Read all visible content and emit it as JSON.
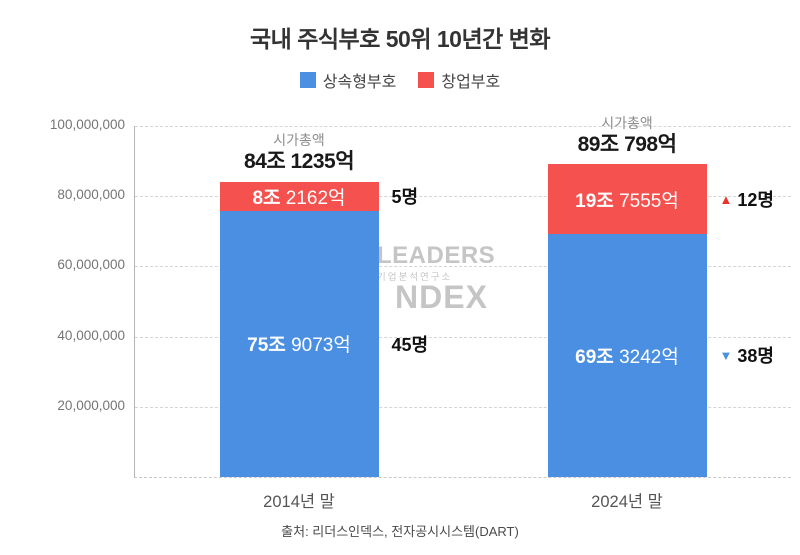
{
  "chart_data": {
    "type": "bar",
    "stacked": true,
    "title": "국내 주식부호 50위 10년간 변화",
    "source": "출처: 리더스인덱스, 전자공시시스템(DART)",
    "categories": [
      "2014년 말",
      "2024년 말"
    ],
    "ylim": [
      0,
      100000000
    ],
    "yticks": [
      20000000,
      40000000,
      60000000,
      80000000,
      100000000
    ],
    "ytick_labels": [
      "20,000,000",
      "40,000,000",
      "60,000,000",
      "80,000,000",
      "100,000,000"
    ],
    "grid": "horizontal-dashed",
    "legend_position": "top",
    "series": [
      {
        "name": "상속형부호",
        "color": "#4b8fe2",
        "values": [
          75907300,
          69324200
        ],
        "bar_labels": [
          "75조 9073억",
          "69조 3242억"
        ],
        "count_annotations": [
          {
            "marker": "",
            "marker_color": "",
            "text": "45명"
          },
          {
            "marker": "▼",
            "marker_color": "#4a90e2",
            "text": "38명"
          }
        ]
      },
      {
        "name": "창업부호",
        "color": "#f4514f",
        "values": [
          8216200,
          19755500
        ],
        "bar_labels": [
          "8조 2162억",
          "19조 7555억"
        ],
        "count_annotations": [
          {
            "marker": "",
            "marker_color": "",
            "text": "5명"
          },
          {
            "marker": "▲",
            "marker_color": "#e8342c",
            "text": "12명"
          }
        ]
      }
    ],
    "totals": {
      "caption": "시가총액",
      "labels": [
        "84조 1235억",
        "89조 798억"
      ]
    }
  },
  "watermark": {
    "line1": "LEADERS",
    "line2": "기업분석연구소",
    "line3": "NDEX"
  }
}
